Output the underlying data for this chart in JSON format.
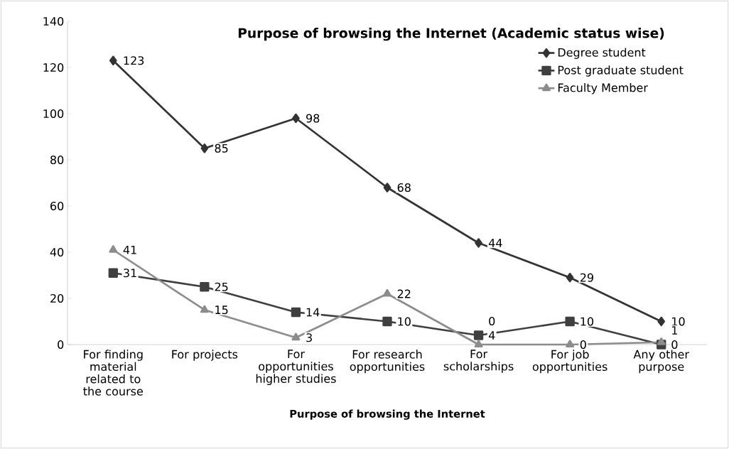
{
  "chart_data": {
    "type": "line",
    "title": "Purpose of browsing the Internet (Academic status wise)",
    "xlabel": "Purpose of browsing the Internet",
    "categories": [
      "For finding material related to the course",
      "For projects",
      "For opportunities higher studies",
      "For research opportunities",
      "For scholarships",
      "For job opportunities",
      "Any other purpose"
    ],
    "series": [
      {
        "name": "Degree student",
        "color": "#333333",
        "marker": "diamond",
        "values": [
          123,
          85,
          98,
          68,
          44,
          29,
          10
        ]
      },
      {
        "name": "Post graduate student",
        "color": "#3f3f3f",
        "marker": "square",
        "values": [
          31,
          25,
          14,
          10,
          4,
          10,
          0
        ]
      },
      {
        "name": "Faculty Member",
        "color": "#8c8c8c",
        "marker": "triangle",
        "values": [
          41,
          15,
          3,
          22,
          0,
          0,
          1
        ]
      }
    ],
    "ylim": [
      0,
      140
    ],
    "yticks": [
      0,
      20,
      40,
      60,
      80,
      100,
      120,
      140
    ],
    "data_labels": true,
    "legend": "top right",
    "grid": false,
    "line_style": "solid"
  }
}
